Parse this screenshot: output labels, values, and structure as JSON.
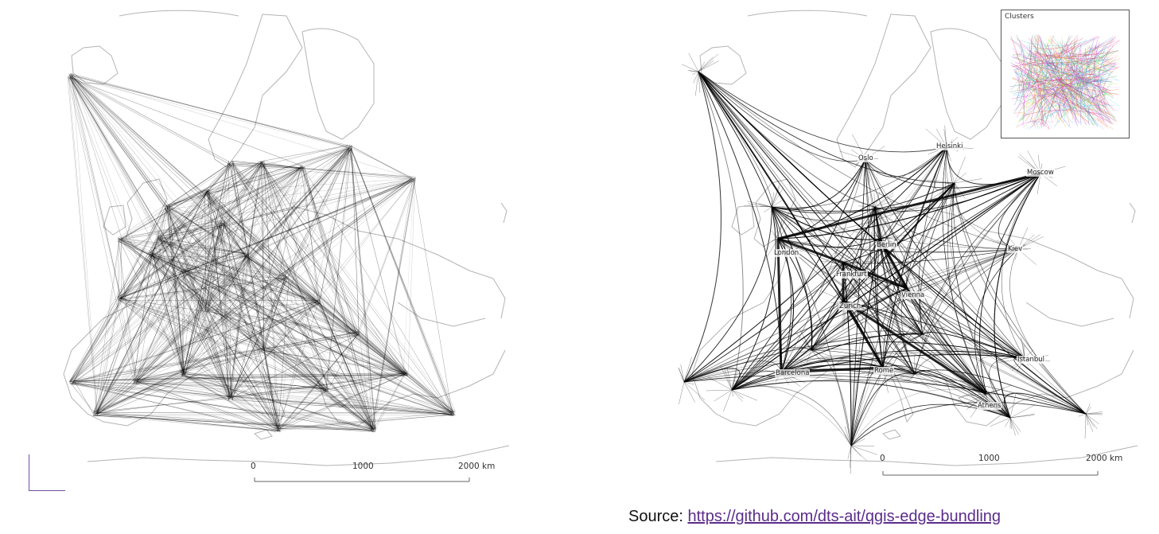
{
  "left_map": {
    "scale": {
      "labels": [
        "0",
        "1000",
        "2000 km"
      ]
    }
  },
  "right_map": {
    "inset_title": "Clusters",
    "scale": {
      "labels": [
        "0",
        "1000",
        "2000 km"
      ]
    },
    "cities": [
      "Oslo",
      "Helsinki",
      "Moscow",
      "London",
      "Berlin",
      "Kiev",
      "Frankfurt",
      "Vienna",
      "Zürich",
      "Istanbul",
      "Barcelona",
      "Rome",
      "Athens"
    ]
  },
  "source": {
    "prefix": "Source: ",
    "link_text": "https://github.com/dts-ait/qgis-edge-bundling"
  },
  "colors": {
    "edges": "#000000",
    "coast": "#b4b4b4",
    "link": "#5b2d8a",
    "cluster_palette": [
      "#e6194b",
      "#3cb44b",
      "#4363d8",
      "#f58231",
      "#911eb4",
      "#42d4f4",
      "#f032e6",
      "#bfef45",
      "#469990",
      "#dcbeff"
    ]
  }
}
